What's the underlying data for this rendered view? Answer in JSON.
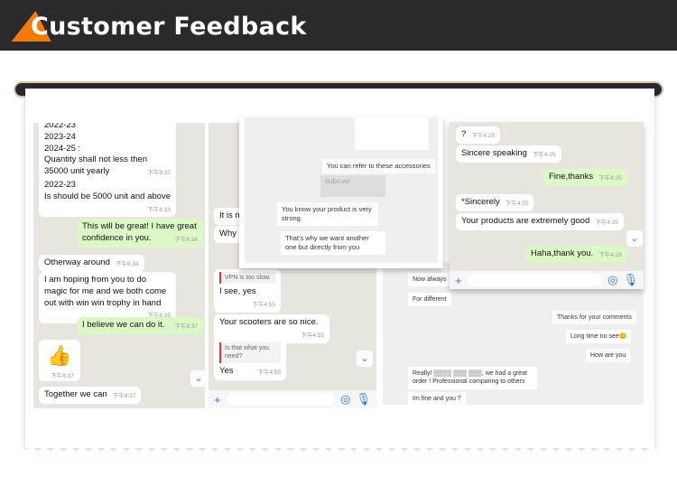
{
  "header": {
    "title": "Customer Feedback",
    "accent": "#f47a0c",
    "bg": "#2a292d"
  },
  "panel1": {
    "messages": [
      {
        "text": "2022-23\n2023-24\n2024-25 :\nQuantity shall not less then 35000 unit yearly",
        "time": "下午8:32",
        "out": false
      },
      {
        "text": "2022-23\nIs should be 5000 unit and above",
        "time": "下午8:33",
        "out": false
      },
      {
        "text": "This will be great! I have great confidence in you.",
        "time": "下午8:34",
        "out": true
      },
      {
        "text": "Otherway around",
        "time": "下午8:34",
        "out": false
      },
      {
        "text": "I am hoping from you to do magic for me and we both come out with win win trophy in hand",
        "time": "下午8:35",
        "out": false
      },
      {
        "text": "I believe we can do it.",
        "time": "下午8:37",
        "out": true
      },
      {
        "text": "👍",
        "time": "下午8:37",
        "out": false
      },
      {
        "text": "Together we can",
        "time": "下午8:37",
        "out": false
      }
    ]
  },
  "panel2": {
    "partial": [
      "It is m",
      "Why a"
    ],
    "messages": [
      {
        "quote": "VPN is too slow.",
        "text": "I see, yes",
        "time": "下午4:55"
      },
      {
        "text": "Your scooters are so nice.",
        "time": "下午4:55"
      },
      {
        "quote": "Is that what you need?",
        "text": "Yes",
        "time": "下午4:55"
      }
    ]
  },
  "overlay": {
    "messages": [
      "You can refer to these accessories",
      "SUDA Vivi :",
      "You know your product is very strong",
      "That's why we want another one but directly from you"
    ]
  },
  "panel3": {
    "messages": [
      "Now always",
      "For different",
      "Thanks for your comments",
      "Long time no see😊",
      "How are you",
      "Really! ▒▒▒▒ ▒▒▒ ▒▒▒, we had a great order ! Professional comparing to others",
      "Im fine and you ?"
    ]
  },
  "panel4": {
    "messages": [
      {
        "text": "?",
        "time": "下午4:25",
        "out": false
      },
      {
        "text": "Sincere speaking",
        "time": "下午4:25",
        "out": false
      },
      {
        "text": "Fine,thanks",
        "time": "下午4:25",
        "out": true
      },
      {
        "text": "*Sincerely",
        "time": "下午4:25",
        "out": false
      },
      {
        "text": "Your products are extremely good",
        "time": "下午4:25",
        "out": false
      },
      {
        "text": "Haha,thank you.",
        "time": "下午4:26",
        "out": true
      }
    ]
  }
}
